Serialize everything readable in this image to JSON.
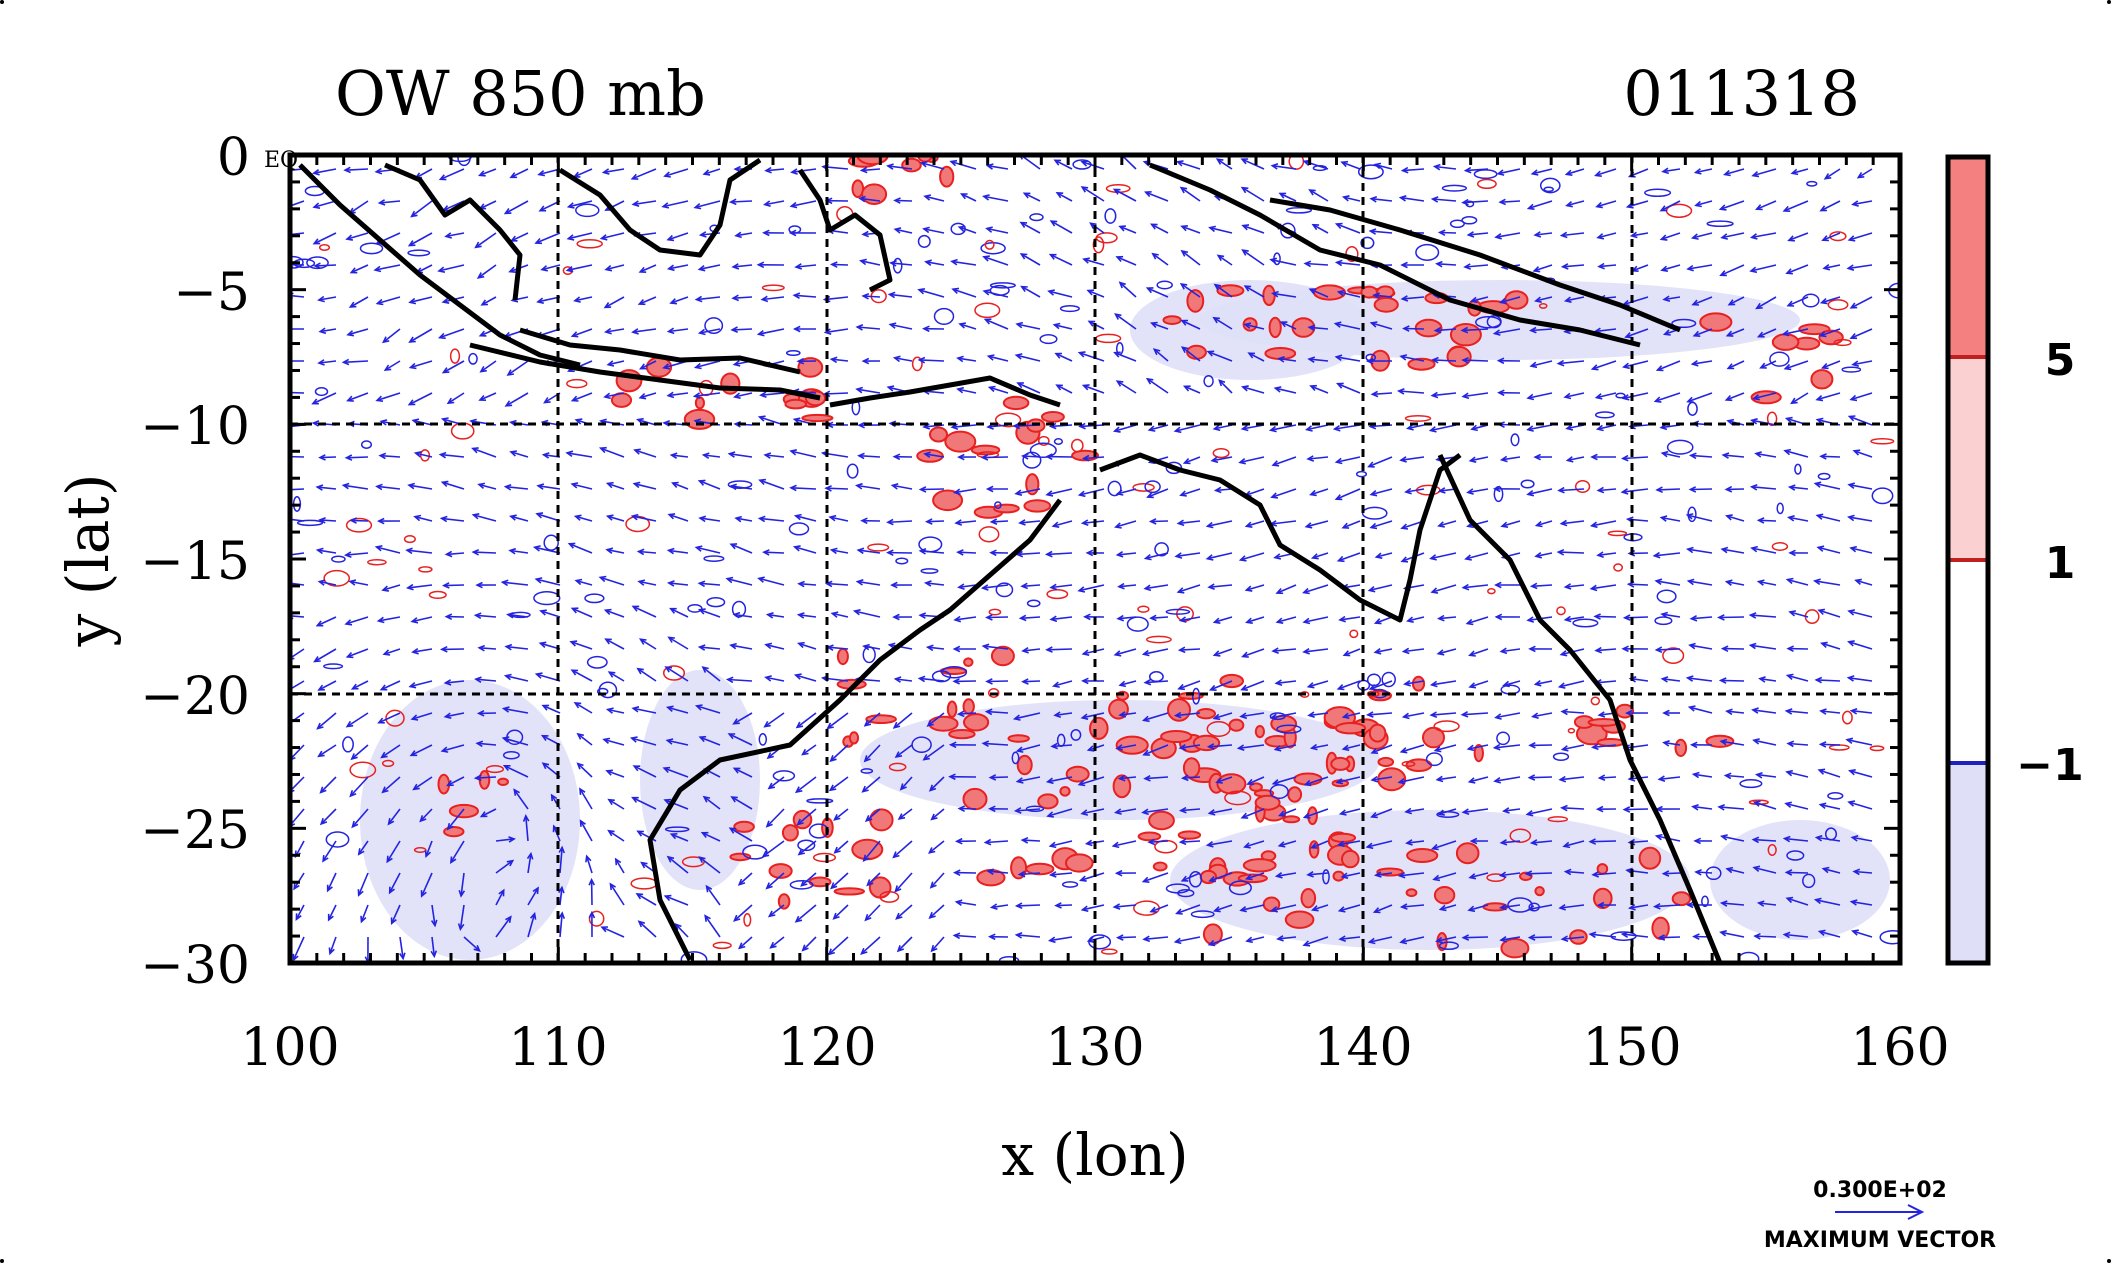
{
  "title_left": "OW 850 mb",
  "title_right": "011318",
  "x_axis_label": "x (lon)",
  "y_axis_label": "y (lat)",
  "x_ticks": [
    "100",
    "110",
    "120",
    "130",
    "140",
    "150",
    "160"
  ],
  "y_ticks": [
    "0",
    "−5",
    "−10",
    "−15",
    "−20",
    "−25",
    "−30"
  ],
  "eq_label": "EQ",
  "colorbar": {
    "labels": [
      "5",
      "1",
      "−1"
    ],
    "colors": [
      "#f58080",
      "#fbd0d0",
      "#ffffff",
      "#dfe0f7"
    ]
  },
  "vector_legend": {
    "value": "0.300E+02",
    "caption": "MAXIMUM VECTOR"
  },
  "colors": {
    "vector": "#2424e0",
    "positive_contour": "#e82020",
    "positive_fill": "#f07878",
    "negative_fill": "#dfe0f7",
    "coastline": "#000000"
  },
  "chart_data": {
    "type": "map",
    "field": "Okubo-Weiss parameter at 850 mb with wind vectors",
    "lon_range": [
      100,
      160
    ],
    "lat_range": [
      -30,
      0
    ],
    "grid_lon": [
      110,
      120,
      130,
      140,
      150
    ],
    "grid_lat": [
      -10,
      -20
    ],
    "contour_levels": [
      -1,
      1,
      5
    ],
    "max_vector": 30
  }
}
